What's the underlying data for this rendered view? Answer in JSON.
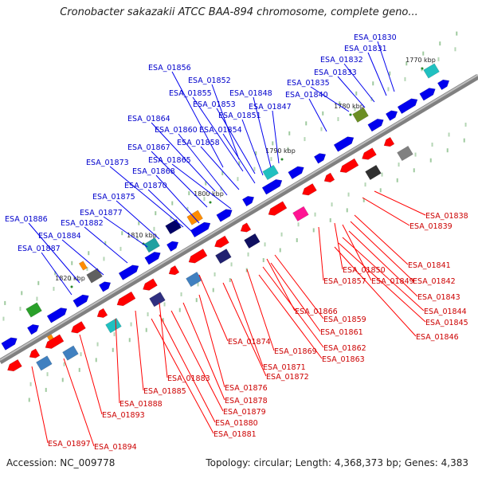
{
  "title": "Cronobacter sakazakii ATCC BAA-894 chromosome, complete geno...",
  "footer": {
    "accession": "Accession: NC_009778",
    "topology": "Topology: circular; Length: 4,368,373 bp; Genes: 4,383"
  },
  "colors": {
    "backbone": "#808080",
    "top_strand": "#0000ee",
    "bottom_strand": "#ff0000"
  },
  "ticks": [
    "1770 kbp",
    "1780 kbp",
    "1790 kbp",
    "1800 kbp",
    "1810 kbp",
    "1820 kbp"
  ],
  "top_labels": [
    "ESA_01830",
    "ESA_01831",
    "ESA_01832",
    "ESA_01833",
    "ESA_01835",
    "ESA_01840",
    "ESA_01856",
    "ESA_01852",
    "ESA_01855",
    "ESA_01848",
    "ESA_01853",
    "ESA_01847",
    "ESA_01851",
    "ESA_01864",
    "ESA_01860",
    "ESA_01854",
    "ESA_01858",
    "ESA_01867",
    "ESA_01865",
    "ESA_01873",
    "ESA_01868",
    "ESA_01870",
    "ESA_01875",
    "ESA_01877",
    "ESA_01886",
    "ESA_01882",
    "ESA_01884",
    "ESA_01887"
  ],
  "bottom_labels": [
    "ESA_01838",
    "ESA_01839",
    "ESA_01841",
    "ESA_01850",
    "ESA_01842",
    "ESA_01857",
    "ESA_01849",
    "ESA_01843",
    "ESA_01844",
    "ESA_01845",
    "ESA_01859",
    "ESA_01866",
    "ESA_01861",
    "ESA_01846",
    "ESA_01874",
    "ESA_01862",
    "ESA_01869",
    "ESA_01863",
    "ESA_01871",
    "ESA_01872",
    "ESA_01883",
    "ESA_01876",
    "ESA_01885",
    "ESA_01878",
    "ESA_01888",
    "ESA_01879",
    "ESA_01893",
    "ESA_01880",
    "ESA_01881",
    "ESA_01897",
    "ESA_01894"
  ]
}
